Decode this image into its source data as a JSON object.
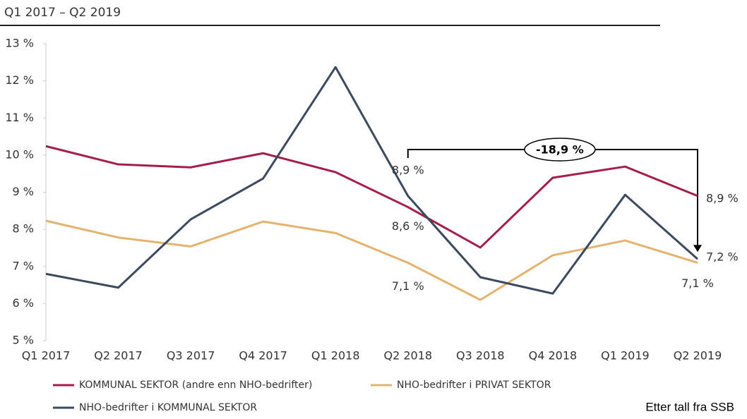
{
  "chart_data": {
    "type": "line",
    "title": "Q1 2017 – Q2 2019",
    "source": "Etter tall fra SSB",
    "annotation": "-18,9 %",
    "categories": [
      "Q1 2017",
      "Q2 2017",
      "Q3 2017",
      "Q4 2017",
      "Q1 2018",
      "Q2 2018",
      "Q3 2018",
      "Q4 2018",
      "Q1 2019",
      "Q2 2019"
    ],
    "ylim": [
      5,
      13
    ],
    "yticks": [
      {
        "value": 5,
        "label": "5 %"
      },
      {
        "value": 6,
        "label": "6 %"
      },
      {
        "value": 7,
        "label": "7 %"
      },
      {
        "value": 8,
        "label": "8 %"
      },
      {
        "value": 9,
        "label": "9 %"
      },
      {
        "value": 10,
        "label": "10 %"
      },
      {
        "value": 11,
        "label": "11 %"
      },
      {
        "value": 12,
        "label": "12 %"
      },
      {
        "value": 13,
        "label": "13 %"
      }
    ],
    "series": [
      {
        "name": "KOMMUNAL SEKTOR (andre enn NHO-bedrifter)",
        "color": "#a31f4a",
        "values": [
          10.24,
          9.75,
          9.67,
          10.05,
          9.54,
          8.6,
          7.51,
          9.39,
          9.69,
          8.9
        ],
        "value_labels": [
          null,
          null,
          null,
          null,
          null,
          "8,6 %",
          null,
          null,
          null,
          "8,9 %"
        ]
      },
      {
        "name": "NHO-bedrifter i PRIVAT SEKTOR",
        "color": "#e3b36f",
        "values": [
          8.23,
          7.78,
          7.54,
          8.21,
          7.9,
          7.1,
          6.1,
          7.3,
          7.7,
          7.1
        ],
        "value_labels": [
          null,
          null,
          null,
          null,
          null,
          "7,1 %",
          null,
          null,
          null,
          "7,1 %"
        ]
      },
      {
        "name": "NHO-bedrifter i KOMMUNAL SEKTOR",
        "color": "#3b4a5e",
        "values": [
          6.8,
          6.43,
          8.27,
          9.37,
          12.37,
          8.9,
          6.71,
          6.27,
          8.93,
          7.2
        ],
        "value_labels": [
          null,
          null,
          null,
          null,
          null,
          "8,9 %",
          null,
          null,
          null,
          "7,2 %"
        ]
      }
    ]
  }
}
